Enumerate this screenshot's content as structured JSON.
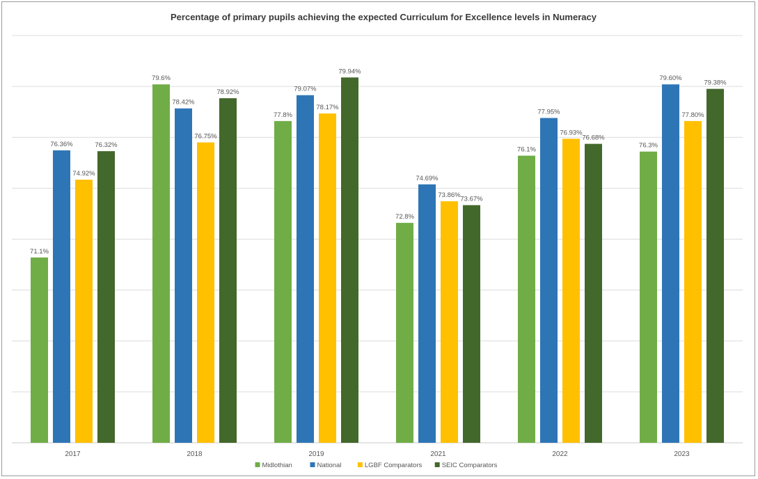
{
  "chart_data": {
    "type": "bar",
    "title": "Percentage of primary pupils achieving the expected Curriculum for Excellence levels in Numeracy",
    "xlabel": "",
    "ylabel": "",
    "ylim": [
      62,
      82
    ],
    "grid": true,
    "legend_position": "bottom",
    "categories": [
      "2017",
      "2018",
      "2019",
      "2021",
      "2022",
      "2023"
    ],
    "series": [
      {
        "name": "Midlothian",
        "color": "#70ad47",
        "values": [
          71.1,
          79.6,
          77.8,
          72.8,
          76.1,
          76.3
        ],
        "labels": [
          "71.1%",
          "79.6%",
          "77.8%",
          "72.8%",
          "76.1%",
          "76.3%"
        ]
      },
      {
        "name": "National",
        "color": "#2e75b6",
        "values": [
          76.36,
          78.42,
          79.07,
          74.69,
          77.95,
          79.6
        ],
        "labels": [
          "76.36%",
          "78.42%",
          "79.07%",
          "74.69%",
          "77.95%",
          "79.60%"
        ]
      },
      {
        "name": "LGBF Comparators",
        "color": "#ffc000",
        "values": [
          74.92,
          76.75,
          78.17,
          73.86,
          76.93,
          77.8
        ],
        "labels": [
          "74.92%",
          "76.75%",
          "78.17%",
          "73.86%",
          "76.93%",
          "77.80%"
        ]
      },
      {
        "name": "SEIC Comparators",
        "color": "#43682b",
        "values": [
          76.32,
          78.92,
          79.94,
          73.67,
          76.68,
          79.38
        ],
        "labels": [
          "76.32%",
          "78.92%",
          "79.94%",
          "73.67%",
          "76.68%",
          "79.38%"
        ]
      }
    ]
  }
}
